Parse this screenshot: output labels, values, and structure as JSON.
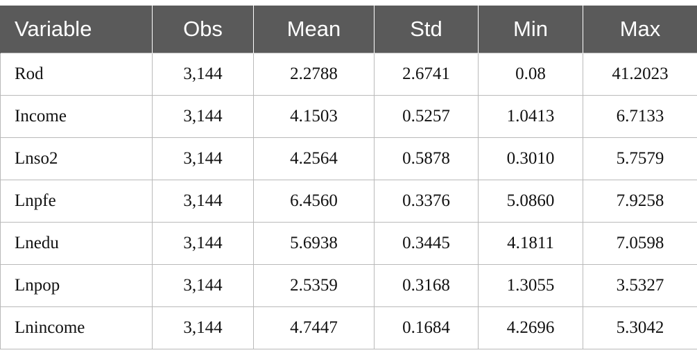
{
  "table": {
    "headers": [
      "Variable",
      "Obs",
      "Mean",
      "Std",
      "Min",
      "Max"
    ],
    "rows": [
      [
        "Rod",
        "3,144",
        "2.2788",
        "2.6741",
        "0.08",
        "41.2023"
      ],
      [
        "Income",
        "3,144",
        "4.1503",
        "0.5257",
        "1.0413",
        "6.7133"
      ],
      [
        "Lnso2",
        "3,144",
        "4.2564",
        "0.5878",
        "0.3010",
        "5.7579"
      ],
      [
        "Lnpfe",
        "3,144",
        "6.4560",
        "0.3376",
        "5.0860",
        "7.9258"
      ],
      [
        "Lnedu",
        "3,144",
        "5.6938",
        "0.3445",
        "4.1811",
        "7.0598"
      ],
      [
        "Lnpop",
        "3,144",
        "2.5359",
        "0.3168",
        "1.3055",
        "3.5327"
      ],
      [
        "Lnincome",
        "3,144",
        "4.7447",
        "0.1684",
        "4.2696",
        "5.3042"
      ]
    ]
  },
  "colors": {
    "header_background": "#5a5a5a",
    "header_text": "#ffffff",
    "grid_lines": "#b9b9b9",
    "body_text": "#111111"
  }
}
